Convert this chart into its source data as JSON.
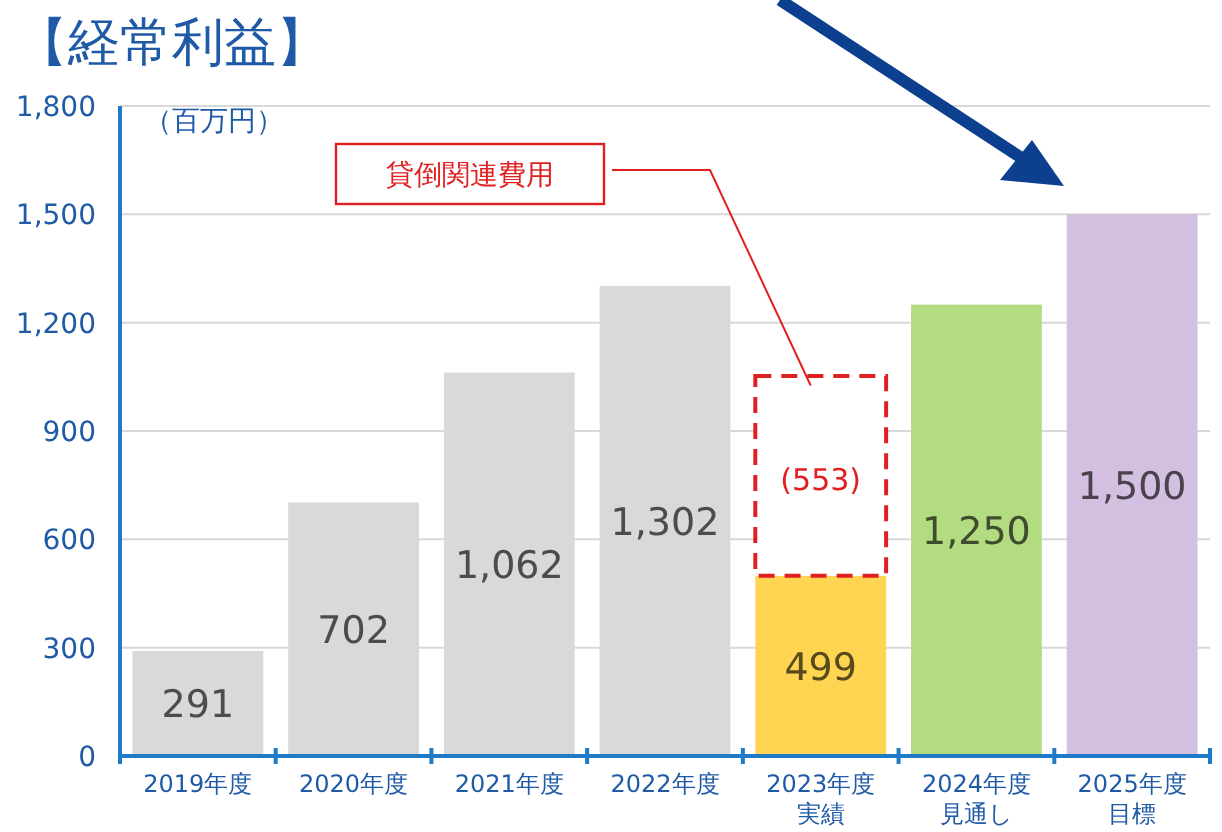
{
  "chart_data": {
    "type": "bar",
    "title": "【経常利益】",
    "ylabel": "（百万円）",
    "categories": [
      "2019年度",
      "2020年度",
      "2021年度",
      "2022年度",
      "2023年度実績",
      "2024年度見通し",
      "2025年度目標"
    ],
    "stacked": true,
    "series": [
      {
        "colors": [
          "#d9d9d9",
          "#d9d9d9",
          "#d9d9d9",
          "#d9d9d9",
          "#ffd451",
          "#b3dc82",
          "#d3bfe0"
        ],
        "values": [
          291,
          702,
          1062,
          1302,
          499,
          1250,
          1500
        ],
        "value_labels": [
          "291",
          "702",
          "1,062",
          "1,302",
          "499",
          "1,250",
          "1,500"
        ]
      },
      {
        "color": "#ffffff",
        "line_style": "dashed",
        "values": [
          null,
          null,
          null,
          null,
          553,
          null,
          null
        ],
        "value_labels": [
          null,
          null,
          null,
          null,
          "(553)",
          null,
          null
        ]
      }
    ],
    "annotations": [
      "貸倒関連費用"
    ],
    "ylim": [
      0,
      1800
    ],
    "yticks": [
      0,
      300,
      600,
      900,
      {
        "value": 1200,
        "label": "1,200"
      },
      {
        "value": 1500,
        "label": "1,500"
      },
      {
        "value": 1800,
        "label": "1,800"
      }
    ],
    "grid": "y"
  }
}
